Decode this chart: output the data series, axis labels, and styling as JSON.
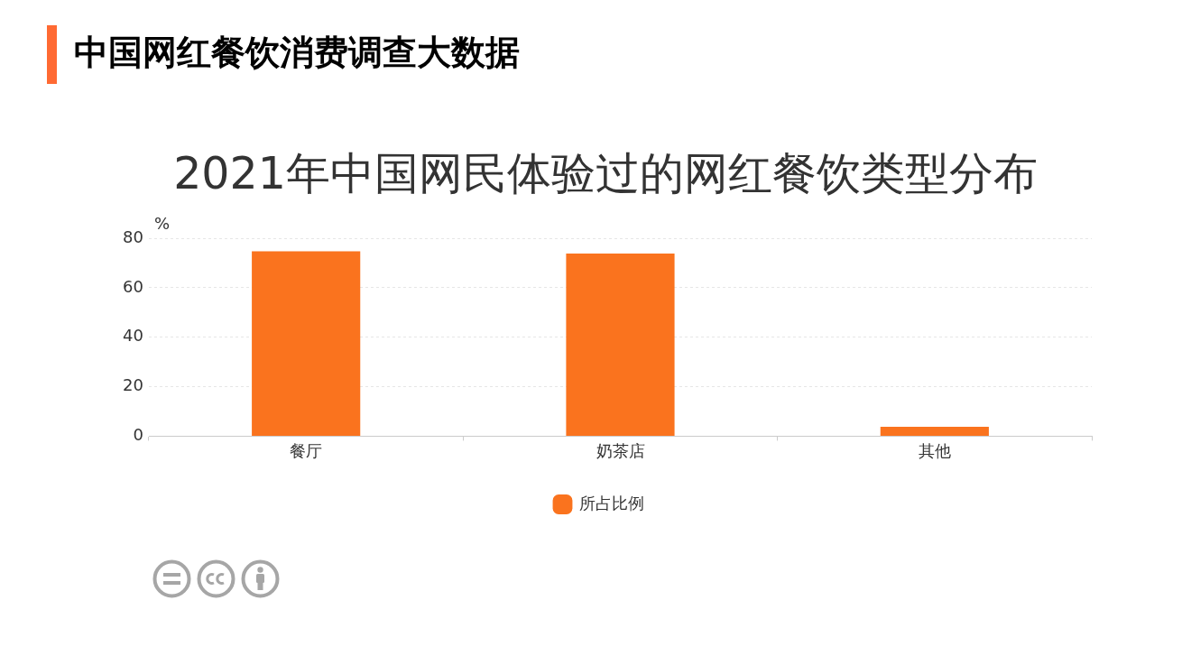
{
  "chart_data": {
    "type": "bar",
    "title": "中国网红餐饮消费调查大数据",
    "subtitle": "2021年中国网民体验过的网红餐饮类型分布",
    "ylabel": "%",
    "categories": [
      "餐厅",
      "奶茶店",
      "其他"
    ],
    "series": [
      {
        "name": "所占比例",
        "color": "#fa731e",
        "values": [
          74.7,
          73.8,
          3.8
        ]
      }
    ],
    "ylim": [
      0,
      80
    ],
    "yticks": [
      0,
      20,
      40,
      60,
      80
    ],
    "grid": "y",
    "legend": "bottom"
  }
}
